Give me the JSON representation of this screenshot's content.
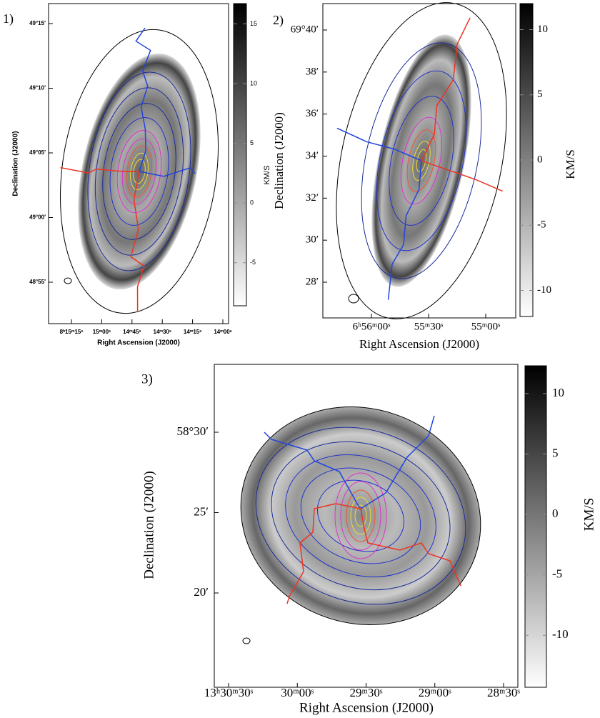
{
  "panels": [
    {
      "label": "1)",
      "x_label": "Right Ascension (J2000)",
      "y_label": "Declination (J2000)",
      "x_ticks": [
        "8ʰ15ᵐ15ˢ",
        "15ᵐ00ˢ",
        "14ᵐ45ˢ",
        "14ᵐ30ˢ",
        "14ᵐ15ˢ",
        "14ᵐ00ˢ"
      ],
      "y_ticks": [
        "49°15′",
        "49°10′",
        "49°05′",
        "49°00′",
        "48°55′"
      ],
      "colorbar": {
        "label": "KM/S",
        "lim": [
          -8.6,
          16.7
        ],
        "ticks": [
          -5,
          0,
          5,
          10,
          15
        ]
      }
    },
    {
      "label": "2)",
      "x_label": "Right Ascension (J2000)",
      "y_label": "Declination (J2000)",
      "x_ticks": [
        "6ʰ56ᵐ00ˢ",
        "55ᵐ30ˢ",
        "55ᵐ00ˢ"
      ],
      "y_ticks": [
        "69°40′",
        "38′",
        "36′",
        "34′",
        "32′",
        "30′",
        "28′"
      ],
      "colorbar": {
        "label": "KM/S",
        "lim": [
          -12,
          12
        ],
        "ticks": [
          -10,
          -5,
          0,
          5,
          10
        ]
      }
    },
    {
      "label": "3)",
      "x_label": "Right Ascension (J2000)",
      "y_label": "Declination (J2000)",
      "x_ticks": [
        "13ʰ30ᵐ30ˢ",
        "30ᵐ00ˢ",
        "29ᵐ30ˢ",
        "29ᵐ00ˢ",
        "28ᵐ30ˢ"
      ],
      "y_ticks": [
        "58°30′",
        "25′",
        "20′"
      ],
      "colorbar": {
        "label": "KM/S",
        "lim": [
          -14.3,
          12.3
        ],
        "ticks": [
          -10,
          -5,
          0,
          5,
          10
        ]
      }
    }
  ]
}
